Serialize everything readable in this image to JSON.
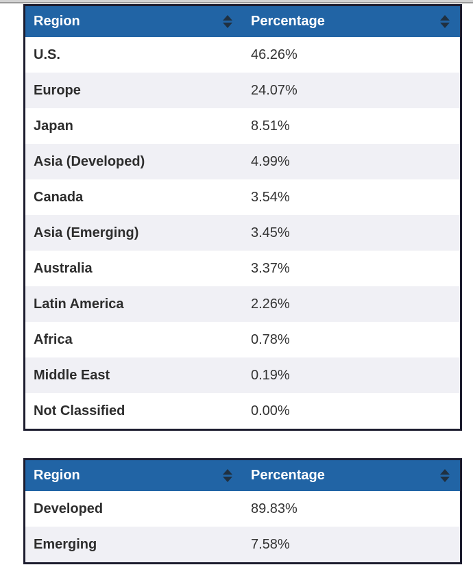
{
  "colors": {
    "header_bg": "#2164a5",
    "header_text": "#ffffff",
    "alt_row_bg": "#f0f0f5",
    "row_bg": "#ffffff",
    "table_border": "#1c1c2e",
    "text": "#2d2d2d",
    "sort_icon": "#203040",
    "top_bar": "#d2d2d2"
  },
  "tables": [
    {
      "name": "region-allocation",
      "columns": [
        {
          "label": "Region",
          "sort_icon": "sort-both-icon"
        },
        {
          "label": "Percentage",
          "sort_icon": "sort-both-icon"
        }
      ],
      "rows": [
        {
          "region": "U.S.",
          "percentage": "46.26%"
        },
        {
          "region": "Europe",
          "percentage": "24.07%"
        },
        {
          "region": "Japan",
          "percentage": "8.51%"
        },
        {
          "region": "Asia (Developed)",
          "percentage": "4.99%"
        },
        {
          "region": "Canada",
          "percentage": "3.54%"
        },
        {
          "region": "Asia (Emerging)",
          "percentage": "3.45%"
        },
        {
          "region": "Australia",
          "percentage": "3.37%"
        },
        {
          "region": "Latin America",
          "percentage": "2.26%"
        },
        {
          "region": "Africa",
          "percentage": "0.78%"
        },
        {
          "region": "Middle East",
          "percentage": "0.19%"
        },
        {
          "region": "Not Classified",
          "percentage": "0.00%"
        }
      ]
    },
    {
      "name": "market-classification",
      "columns": [
        {
          "label": "Region",
          "sort_icon": "sort-both-icon"
        },
        {
          "label": "Percentage",
          "sort_icon": "sort-both-icon"
        }
      ],
      "rows": [
        {
          "region": "Developed",
          "percentage": "89.83%"
        },
        {
          "region": "Emerging",
          "percentage": "7.58%"
        }
      ]
    }
  ]
}
